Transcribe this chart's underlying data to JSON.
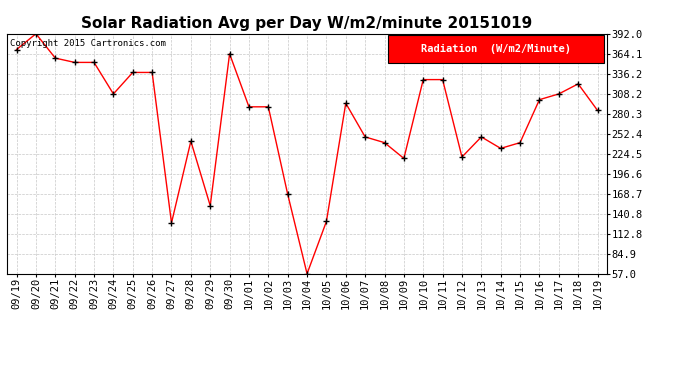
{
  "title": "Solar Radiation Avg per Day W/m2/minute 20151019",
  "copyright_text": "Copyright 2015 Cartronics.com",
  "legend_label": "Radiation  (W/m2/Minute)",
  "dates": [
    "09/19",
    "09/20",
    "09/21",
    "09/22",
    "09/23",
    "09/24",
    "09/25",
    "09/26",
    "09/27",
    "09/28",
    "09/29",
    "09/30",
    "10/01",
    "10/02",
    "10/03",
    "10/04",
    "10/05",
    "10/06",
    "10/07",
    "10/08",
    "10/09",
    "10/10",
    "10/11",
    "10/12",
    "10/13",
    "10/14",
    "10/15",
    "10/16",
    "10/17",
    "10/18",
    "10/19"
  ],
  "values": [
    370.0,
    392.0,
    358.0,
    352.0,
    352.0,
    308.0,
    338.0,
    338.0,
    128.0,
    242.0,
    152.0,
    364.0,
    290.0,
    290.0,
    168.0,
    57.0,
    130.0,
    295.0,
    248.0,
    240.0,
    218.0,
    328.0,
    328.0,
    220.0,
    248.0,
    232.0,
    240.0,
    300.0,
    308.0,
    322.0,
    285.0
  ],
  "yticks": [
    57.0,
    84.9,
    112.8,
    140.8,
    168.7,
    196.6,
    224.5,
    252.4,
    280.3,
    308.2,
    336.2,
    364.1,
    392.0
  ],
  "line_color": "red",
  "marker_color": "black",
  "bg_color": "white",
  "grid_color": "#c8c8c8",
  "legend_bg": "red",
  "legend_text_color": "white",
  "title_fontsize": 11,
  "tick_fontsize": 7.5,
  "copyright_fontsize": 6.5,
  "legend_fontsize": 7.5,
  "ylim_min": 57.0,
  "ylim_max": 392.0
}
